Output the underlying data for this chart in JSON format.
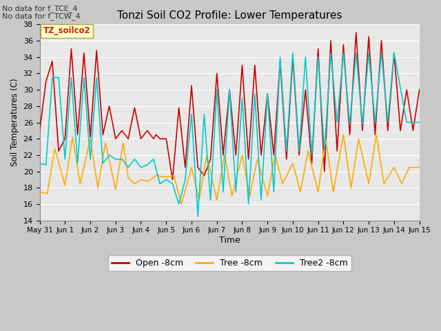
{
  "title": "Tonzi Soil CO2 Profile: Lower Temperatures",
  "xlabel": "Time",
  "ylabel": "Soil Temperatures (C)",
  "annotation_line1": "No data for f_TCE_4",
  "annotation_line2": "No data for f_TCW_4",
  "watermark": "TZ_soilco2",
  "ylim": [
    14,
    38
  ],
  "yticks": [
    14,
    16,
    18,
    20,
    22,
    24,
    26,
    28,
    30,
    32,
    34,
    36,
    38
  ],
  "fig_bg": "#c8c8c8",
  "plot_bg": "#e8e8e8",
  "grid_color": "#ffffff",
  "legend_labels": [
    "Open -8cm",
    "Tree -8cm",
    "Tree2 -8cm"
  ],
  "legend_colors": [
    "#cc0000",
    "#ffaa00",
    "#00cccc"
  ],
  "series_colors": [
    "#cc0000",
    "#ffaa00",
    "#00cccc"
  ],
  "x_tick_labels": [
    "May 31",
    "Jun 1",
    "Jun 2",
    "Jun 3",
    "Jun 4",
    "Jun 5",
    "Jun 6",
    "Jun 7",
    "Jun 8",
    "Jun 9",
    "Jun 10",
    "Jun 11",
    "Jun 12",
    "Jun 13",
    "Jun 14",
    "Jun 15"
  ],
  "open_8cm_x": [
    0.0,
    0.25,
    0.5,
    0.75,
    1.0,
    1.25,
    1.5,
    1.75,
    2.0,
    2.25,
    2.5,
    2.75,
    3.0,
    3.25,
    3.5,
    3.75,
    4.0,
    4.25,
    4.5,
    4.6,
    4.75,
    5.0,
    5.25,
    5.5,
    5.75,
    6.0,
    6.25,
    6.5,
    6.75,
    7.0,
    7.25,
    7.5,
    7.75,
    8.0,
    8.25,
    8.5,
    8.75,
    9.0,
    9.25,
    9.5,
    9.75,
    10.0,
    10.25,
    10.5,
    10.75,
    11.0,
    11.25,
    11.5,
    11.75,
    12.0,
    12.25,
    12.5,
    12.75,
    13.0,
    13.25,
    13.5,
    13.75,
    14.0,
    14.25,
    14.5,
    14.75,
    15.0
  ],
  "open_8cm_y": [
    25.0,
    31.0,
    33.5,
    22.5,
    24.0,
    35.0,
    24.5,
    34.5,
    24.2,
    34.8,
    24.5,
    28.0,
    24.0,
    25.0,
    24.0,
    27.8,
    24.0,
    25.0,
    24.0,
    24.5,
    24.0,
    24.0,
    19.0,
    27.8,
    20.5,
    30.5,
    20.5,
    19.5,
    21.5,
    32.0,
    22.0,
    30.0,
    22.0,
    33.0,
    21.5,
    33.0,
    22.0,
    29.5,
    22.0,
    33.5,
    21.5,
    34.0,
    22.0,
    30.0,
    21.0,
    35.0,
    20.0,
    36.0,
    22.5,
    35.5,
    24.5,
    37.0,
    25.0,
    36.5,
    24.5,
    36.0,
    25.0,
    34.5,
    25.0,
    30.0,
    25.0,
    30.0
  ],
  "tree_8cm_x": [
    0.0,
    0.3,
    0.6,
    1.0,
    1.3,
    1.6,
    2.0,
    2.3,
    2.6,
    3.0,
    3.3,
    3.5,
    3.75,
    4.0,
    4.3,
    4.6,
    5.0,
    5.3,
    5.6,
    6.0,
    6.3,
    6.6,
    7.0,
    7.3,
    7.6,
    8.0,
    8.3,
    8.6,
    9.0,
    9.3,
    9.6,
    10.0,
    10.3,
    10.6,
    11.0,
    11.3,
    11.6,
    12.0,
    12.3,
    12.6,
    13.0,
    13.3,
    13.6,
    14.0,
    14.3,
    14.6,
    15.0
  ],
  "tree_8cm_y": [
    17.5,
    17.3,
    22.8,
    18.3,
    24.2,
    18.5,
    24.0,
    18.0,
    23.5,
    17.8,
    23.5,
    19.2,
    18.5,
    19.0,
    18.8,
    19.5,
    19.3,
    19.5,
    16.0,
    20.5,
    16.5,
    22.0,
    16.5,
    22.0,
    17.0,
    22.0,
    17.0,
    21.5,
    17.0,
    22.0,
    18.5,
    21.0,
    17.5,
    22.5,
    17.5,
    24.0,
    17.5,
    24.5,
    18.0,
    24.0,
    18.5,
    24.5,
    18.5,
    20.5,
    18.5,
    20.5,
    20.5
  ],
  "tree2_8cm_x": [
    0.0,
    0.25,
    0.5,
    0.75,
    1.0,
    1.25,
    1.5,
    1.75,
    2.0,
    2.25,
    2.5,
    2.75,
    3.0,
    3.25,
    3.5,
    3.75,
    4.0,
    4.25,
    4.5,
    4.75,
    5.0,
    5.25,
    5.5,
    5.75,
    6.0,
    6.25,
    6.5,
    6.75,
    7.0,
    7.25,
    7.5,
    7.75,
    8.0,
    8.25,
    8.5,
    8.75,
    9.0,
    9.25,
    9.5,
    9.75,
    10.0,
    10.25,
    10.5,
    10.75,
    11.0,
    11.25,
    11.5,
    11.75,
    12.0,
    12.25,
    12.5,
    12.75,
    13.0,
    13.25,
    13.5,
    13.75,
    14.0,
    14.5,
    15.0
  ],
  "tree2_8cm_y": [
    21.0,
    20.8,
    31.5,
    31.5,
    21.5,
    31.5,
    21.0,
    31.5,
    21.5,
    31.5,
    21.0,
    22.0,
    21.5,
    21.5,
    20.5,
    21.5,
    20.5,
    20.8,
    21.5,
    18.5,
    19.0,
    18.5,
    16.0,
    19.0,
    27.0,
    14.5,
    27.0,
    16.5,
    30.0,
    17.5,
    30.0,
    17.5,
    29.0,
    16.0,
    29.5,
    16.5,
    29.5,
    17.5,
    34.0,
    22.5,
    34.5,
    22.5,
    34.0,
    22.0,
    34.0,
    22.5,
    34.5,
    26.0,
    34.5,
    25.8,
    34.5,
    25.8,
    34.5,
    26.0,
    34.5,
    26.0,
    34.5,
    26.0,
    26.0
  ]
}
